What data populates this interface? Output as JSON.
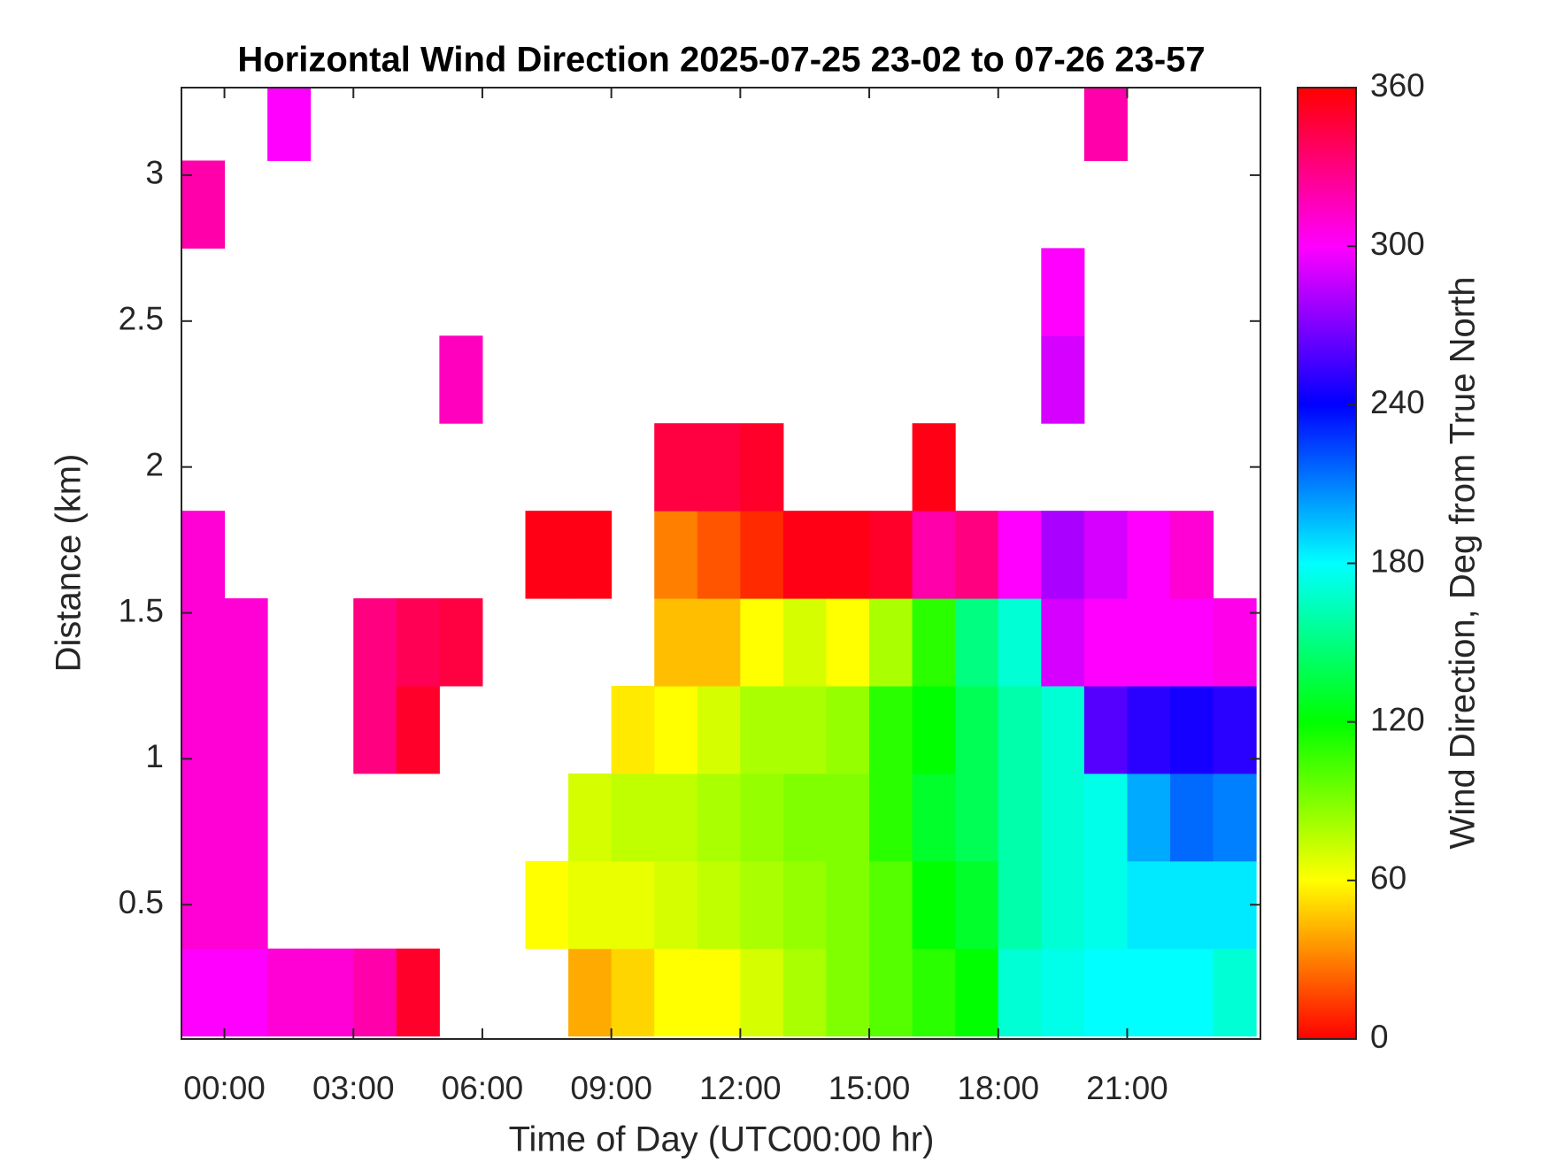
{
  "chart_data": {
    "type": "heatmap",
    "title": "Horizontal Wind Direction 2025-07-25 23-02 to 07-26 23-57",
    "x_label": "Time of Day (UTC00:00 hr)",
    "y_label": "Distance (km)",
    "colorbar_label": "Wind Direction, Deg from True North",
    "colormap": "hsv",
    "clim": [
      0,
      360
    ],
    "cticks": [
      0,
      60,
      120,
      180,
      240,
      300,
      360
    ],
    "xlim": [
      -1,
      24.1
    ],
    "xticks": [
      {
        "value": 0,
        "label": "00:00"
      },
      {
        "value": 3,
        "label": "03:00"
      },
      {
        "value": 6,
        "label": "06:00"
      },
      {
        "value": 9,
        "label": "09:00"
      },
      {
        "value": 12,
        "label": "12:00"
      },
      {
        "value": 15,
        "label": "15:00"
      },
      {
        "value": 18,
        "label": "18:00"
      },
      {
        "value": 21,
        "label": "21:00"
      }
    ],
    "ylim": [
      0.04,
      3.3
    ],
    "yticks": [
      0.5,
      1,
      1.5,
      2,
      2.5,
      3
    ],
    "x": [
      -0.5,
      0.5,
      1.5,
      2.5,
      3.5,
      4.5,
      5.5,
      6.5,
      7.5,
      8.5,
      9.5,
      10.5,
      11.5,
      12.5,
      13.5,
      14.5,
      15.5,
      16.5,
      17.5,
      18.5,
      19.5,
      20.5,
      21.5,
      22.5,
      23.5
    ],
    "y": [
      0.2,
      0.5,
      0.8,
      1.1,
      1.4,
      1.7,
      2.0,
      2.3,
      2.6,
      2.9,
      3.2
    ],
    "z": [
      [
        300,
        300,
        310,
        310,
        320,
        350,
        null,
        null,
        null,
        40,
        50,
        60,
        60,
        70,
        80,
        90,
        100,
        110,
        120,
        170,
        175,
        180,
        180,
        180,
        170
      ],
      [
        310,
        310,
        null,
        null,
        null,
        null,
        null,
        null,
        60,
        65,
        65,
        70,
        75,
        80,
        85,
        90,
        100,
        120,
        130,
        160,
        170,
        175,
        185,
        185,
        185
      ],
      [
        310,
        310,
        null,
        null,
        null,
        null,
        null,
        null,
        null,
        70,
        75,
        75,
        80,
        85,
        90,
        90,
        110,
        130,
        140,
        160,
        170,
        175,
        200,
        215,
        210
      ],
      [
        310,
        310,
        null,
        null,
        330,
        350,
        null,
        null,
        null,
        null,
        55,
        60,
        70,
        80,
        80,
        85,
        110,
        120,
        140,
        160,
        170,
        260,
        250,
        245,
        250
      ],
      [
        310,
        310,
        null,
        null,
        330,
        340,
        345,
        null,
        null,
        null,
        null,
        45,
        45,
        60,
        70,
        60,
        80,
        110,
        150,
        170,
        290,
        300,
        300,
        300,
        305
      ],
      [
        310,
        null,
        null,
        null,
        null,
        null,
        null,
        null,
        355,
        355,
        null,
        30,
        20,
        10,
        355,
        355,
        350,
        320,
        330,
        300,
        280,
        290,
        300,
        310,
        null
      ],
      [
        null,
        null,
        null,
        null,
        null,
        null,
        null,
        null,
        null,
        null,
        null,
        345,
        345,
        350,
        null,
        null,
        null,
        355,
        null,
        null,
        null,
        null,
        null,
        null,
        null
      ],
      [
        null,
        null,
        null,
        null,
        null,
        null,
        315,
        null,
        null,
        null,
        null,
        null,
        null,
        null,
        null,
        null,
        null,
        null,
        null,
        null,
        290,
        null,
        null,
        null,
        null
      ],
      [
        null,
        null,
        null,
        null,
        null,
        null,
        null,
        null,
        null,
        null,
        null,
        null,
        null,
        null,
        null,
        null,
        null,
        null,
        null,
        null,
        300,
        null,
        null,
        null,
        null
      ],
      [
        320,
        null,
        null,
        null,
        null,
        null,
        null,
        null,
        null,
        null,
        null,
        null,
        null,
        null,
        null,
        null,
        null,
        null,
        null,
        null,
        null,
        null,
        null,
        null,
        null
      ],
      [
        null,
        null,
        300,
        null,
        null,
        null,
        null,
        null,
        null,
        null,
        null,
        null,
        null,
        null,
        null,
        null,
        null,
        null,
        null,
        null,
        null,
        320,
        null,
        null,
        null
      ]
    ]
  }
}
